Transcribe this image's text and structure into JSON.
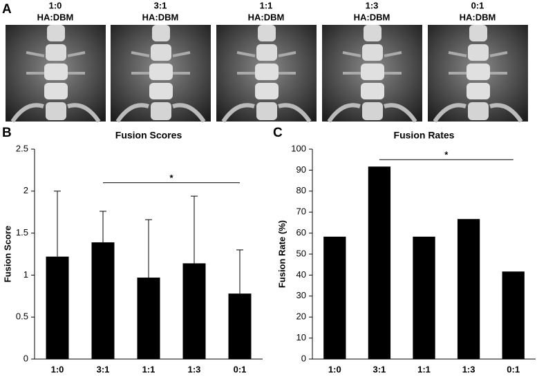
{
  "figure": {
    "panel_labels": [
      "A",
      "B",
      "C"
    ],
    "images": [
      {
        "ratio": "1:0",
        "label": "HA:DBM"
      },
      {
        "ratio": "3:1",
        "label": "HA:DBM"
      },
      {
        "ratio": "1:1",
        "label": "HA:DBM"
      },
      {
        "ratio": "1:3",
        "label": "HA:DBM"
      },
      {
        "ratio": "0:1",
        "label": "HA:DBM"
      }
    ]
  },
  "chart_data": [
    {
      "type": "bar",
      "title": "Fusion Scores",
      "y_label": "Fusion Score",
      "categories": [
        "1:0",
        "3:1",
        "1:1",
        "1:3",
        "0:1"
      ],
      "values": [
        1.22,
        1.39,
        0.97,
        1.14,
        0.78
      ],
      "errors": [
        0.78,
        0.37,
        0.69,
        0.8,
        0.52
      ],
      "color": "#000000",
      "ylim": [
        0,
        2.5
      ],
      "yticks": [
        0,
        0.5,
        1,
        1.5,
        2,
        2.5
      ],
      "significance": {
        "label": "*",
        "between": [
          "3:1",
          "0:1"
        ],
        "y": 2.1
      }
    },
    {
      "type": "bar",
      "title": "Fusion Rates",
      "y_label": "Fusion Rate (%)",
      "categories": [
        "1:0",
        "3:1",
        "1:1",
        "1:3",
        "0:1"
      ],
      "values": [
        58.3,
        91.7,
        58.3,
        66.7,
        41.7
      ],
      "color": "#000000",
      "ylim": [
        0,
        100
      ],
      "yticks": [
        0,
        10,
        20,
        30,
        40,
        50,
        60,
        70,
        80,
        90,
        100
      ],
      "significance": {
        "label": "*",
        "between": [
          "3:1",
          "0:1"
        ],
        "y": 95
      }
    }
  ]
}
